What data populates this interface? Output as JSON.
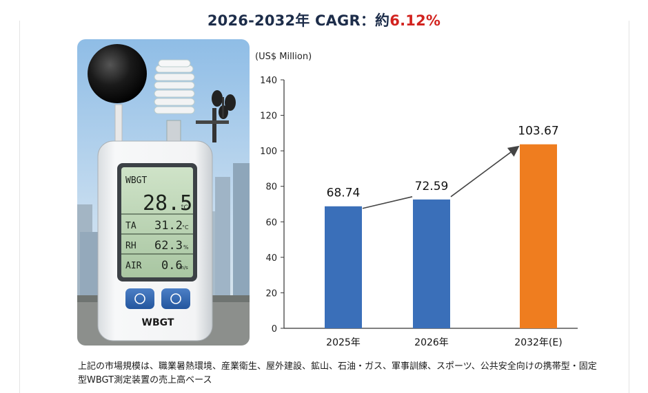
{
  "title": {
    "main": "2026-2032年 CAGR：約",
    "highlight": "6.12%"
  },
  "device": {
    "screen_label": "WBGT",
    "main_value": "28.5",
    "main_unit": "°C",
    "rows": [
      {
        "label": "TA",
        "value": "31.2",
        "unit": "°C"
      },
      {
        "label": "RH",
        "value": "62.3",
        "unit": "%"
      },
      {
        "label": "AIR",
        "value": "0.6",
        "unit": "m/s"
      }
    ],
    "brand": "WBGT"
  },
  "chart_data": {
    "type": "bar",
    "unit_label": "(US$ Million)",
    "categories": [
      "2025年",
      "2026年",
      "2032年(E)"
    ],
    "values": [
      68.74,
      72.59,
      103.67
    ],
    "value_labels": [
      "68.74",
      "72.59",
      "103.67"
    ],
    "bar_colors": [
      "#3a6fb9",
      "#3a6fb9",
      "#ef7d1f"
    ],
    "ylim": [
      0,
      140
    ],
    "yticks": [
      0,
      20,
      40,
      60,
      80,
      100,
      120,
      140
    ],
    "trend_arrow": true
  },
  "footnote": "上記の市場規模は、職業暑熱環境、産業衛生、屋外建設、鉱山、石油・ガス、軍事訓練、スポーツ、公共安全向けの携帯型・固定型WBGT測定装置の売上高ベース"
}
